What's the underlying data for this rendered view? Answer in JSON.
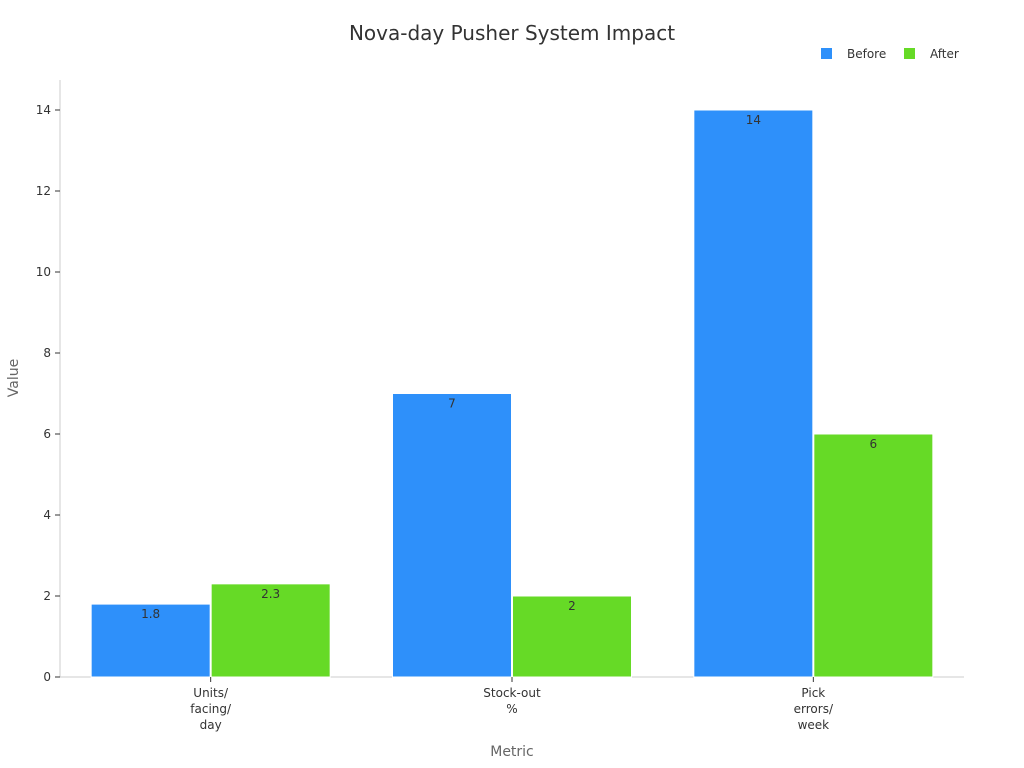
{
  "chart_data": {
    "type": "bar",
    "title": "Nova-day Pusher System Impact",
    "xlabel": "Metric",
    "ylabel": "Value",
    "categories": [
      [
        "Units/",
        "facing/",
        "day"
      ],
      [
        "Stock-out",
        "%"
      ],
      [
        "Pick",
        "errors/",
        "week"
      ]
    ],
    "series": [
      {
        "name": "Before",
        "color": "#2e90fa",
        "values": [
          1.8,
          7,
          14
        ]
      },
      {
        "name": "After",
        "color": "#66da26",
        "values": [
          2.3,
          2,
          6
        ]
      }
    ],
    "ylim": [
      0,
      14
    ],
    "yticks": [
      0,
      2,
      4,
      6,
      8,
      10,
      12,
      14
    ],
    "grid": false,
    "legend_position": "top-right"
  }
}
